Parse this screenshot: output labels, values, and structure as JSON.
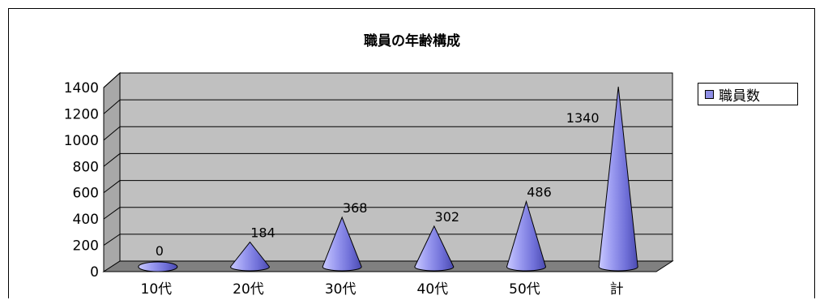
{
  "chart_data": {
    "type": "bar",
    "title": "職員の年齢構成",
    "categories": [
      "10代",
      "20代",
      "30代",
      "40代",
      "50代",
      "計"
    ],
    "series": [
      {
        "name": "職員数",
        "values": [
          0,
          184,
          368,
          302,
          486,
          1340
        ]
      }
    ],
    "ylim": [
      0,
      1400
    ],
    "yticks": [
      0,
      200,
      400,
      600,
      800,
      1000,
      1200,
      1400
    ],
    "grid": true,
    "legend": "right",
    "shape": "cone",
    "colors": {
      "plot_bg": "#c0c0c0",
      "cone": "#8f8fe6",
      "cone_dark": "#4a4ab0",
      "floor": "#808080"
    }
  }
}
